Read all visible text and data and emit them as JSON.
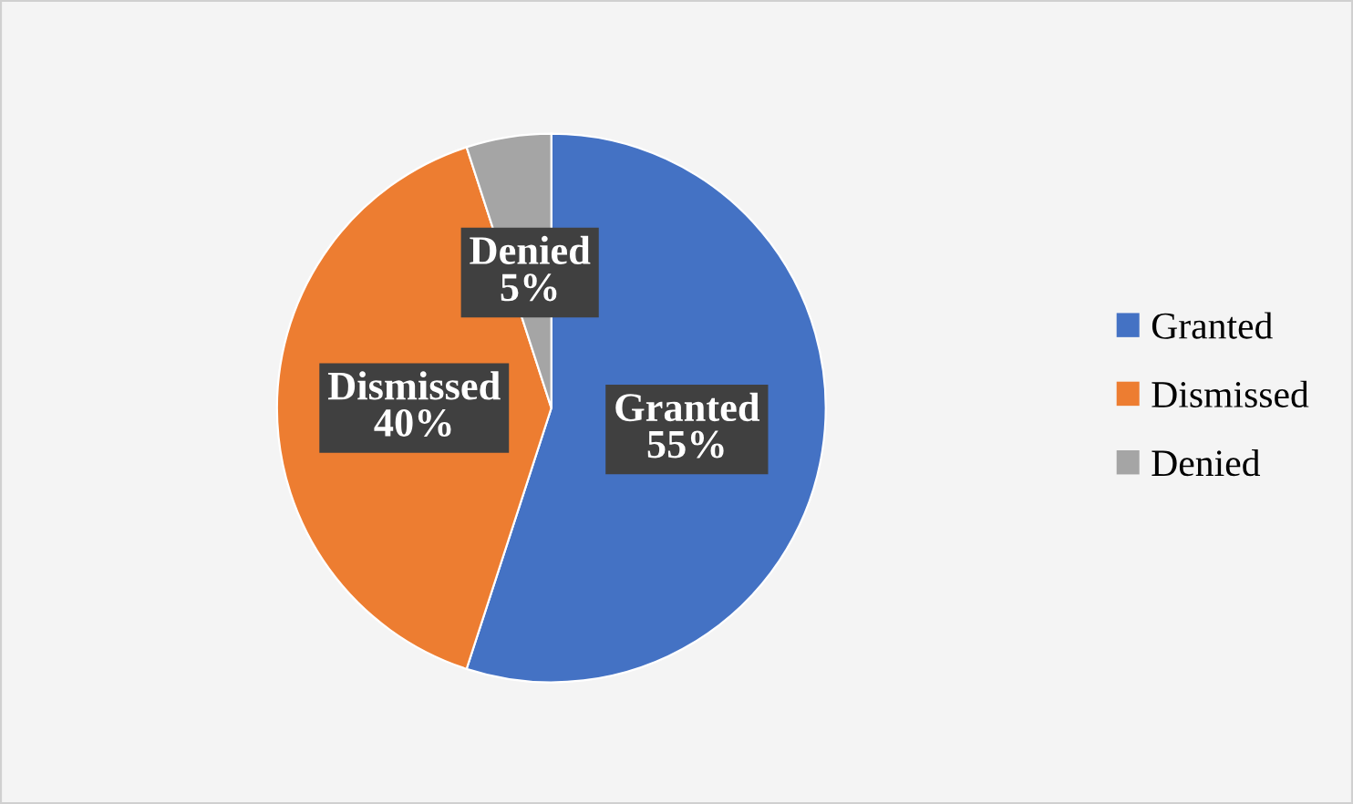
{
  "chart_data": {
    "type": "pie",
    "categories": [
      "Granted",
      "Dismissed",
      "Denied"
    ],
    "values": [
      55,
      40,
      5
    ],
    "colors": [
      "#4472c4",
      "#ed7d31",
      "#a5a5a5"
    ],
    "value_labels": [
      "55%",
      "40%",
      "5%"
    ],
    "legend": "right"
  }
}
